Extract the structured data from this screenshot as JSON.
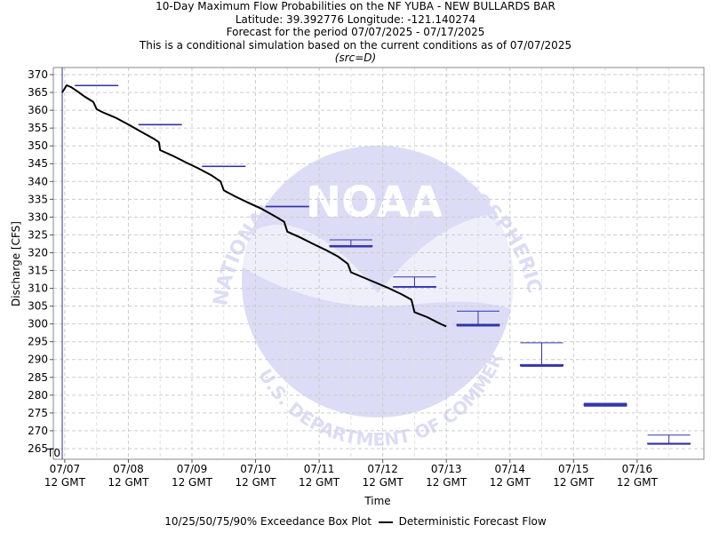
{
  "titles": {
    "line1": "10-Day Maximum Flow Probabilities on the NF YUBA - NEW BULLARDS BAR",
    "line2": "Latitude: 39.392776 Longitude: -121.140274",
    "line3": "Forecast for the period 07/07/2025 - 07/17/2025",
    "line4": "This is a conditional simulation based on the current conditions as of 07/07/2025",
    "line5": "(src=D)"
  },
  "watermark": {
    "ring_top": "NATIONAL OCEANIC AND ATMOSPHERIC ADMINISTRATION",
    "ring_bottom": "U.S. DEPARTMENT OF COMMERCE",
    "logo": "NOAA"
  },
  "legend": {
    "box_label": "10/25/50/75/90% Exceedance Box Plot",
    "line_label": "Deterministic Forecast Flow"
  },
  "colors": {
    "box": "#3333aa",
    "line": "#000000",
    "grid": "#cccccc",
    "t0": "#3333aa",
    "watermark": "#dcdcf6"
  },
  "chart_data": {
    "type": "line",
    "xlabel": "Time",
    "ylabel": "Discharge [CFS]",
    "ylim": [
      262,
      372
    ],
    "xlim_days": [
      -0.18,
      10.05
    ],
    "yticks": [
      265,
      270,
      275,
      280,
      285,
      290,
      295,
      300,
      305,
      310,
      315,
      320,
      325,
      330,
      335,
      340,
      345,
      350,
      355,
      360,
      365,
      370
    ],
    "xticks": [
      {
        "day": 0,
        "line1": "07/07",
        "line2": "12 GMT"
      },
      {
        "day": 1,
        "line1": "07/08",
        "line2": "12 GMT"
      },
      {
        "day": 2,
        "line1": "07/09",
        "line2": "12 GMT"
      },
      {
        "day": 3,
        "line1": "07/10",
        "line2": "12 GMT"
      },
      {
        "day": 4,
        "line1": "07/11",
        "line2": "12 GMT"
      },
      {
        "day": 5,
        "line1": "07/12",
        "line2": "12 GMT"
      },
      {
        "day": 6,
        "line1": "07/13",
        "line2": "12 GMT"
      },
      {
        "day": 7,
        "line1": "07/14",
        "line2": "12 GMT"
      },
      {
        "day": 8,
        "line1": "07/15",
        "line2": "12 GMT"
      },
      {
        "day": 9,
        "line1": "07/16",
        "line2": "12 GMT"
      }
    ],
    "grid": true,
    "t0": {
      "day": -0.04,
      "label": "T0"
    },
    "series": [
      {
        "name": "Deterministic Forecast Flow",
        "x": [
          -0.04,
          0.03,
          0.1,
          0.2,
          0.3,
          0.45,
          0.5,
          0.6,
          0.8,
          1.0,
          1.2,
          1.4,
          1.48,
          1.5,
          1.7,
          1.9,
          2.1,
          2.3,
          2.45,
          2.5,
          2.7,
          2.9,
          3.1,
          3.3,
          3.45,
          3.5,
          3.7,
          3.9,
          4.1,
          4.3,
          4.45,
          4.5,
          4.7,
          4.9,
          5.1,
          5.3,
          5.45,
          5.5,
          5.7,
          5.9,
          6.0
        ],
        "y": [
          365,
          367,
          366.5,
          365.3,
          364,
          362.3,
          360.3,
          359.4,
          357.9,
          356,
          354,
          352,
          351,
          348.8,
          347.2,
          345.4,
          343.7,
          341.8,
          340,
          337.5,
          335.6,
          333.9,
          332.3,
          330.3,
          328.7,
          325.9,
          324.3,
          322.5,
          320.8,
          318.9,
          316.9,
          314.5,
          313,
          311.5,
          310,
          308.3,
          306.8,
          303.3,
          301.9,
          300.1,
          299.3
        ]
      }
    ],
    "boxes": [
      {
        "day": 0.5,
        "p10": 367,
        "p25": 367,
        "p50": 367,
        "p75": 367,
        "p90": 367
      },
      {
        "day": 1.5,
        "p10": 356,
        "p25": 356,
        "p50": 356,
        "p75": 356,
        "p90": 356
      },
      {
        "day": 2.5,
        "p10": 344.3,
        "p25": 344.3,
        "p50": 344.3,
        "p75": 344.3,
        "p90": 344.3
      },
      {
        "day": 3.5,
        "p10": 333,
        "p25": 333,
        "p50": 333,
        "p75": 333,
        "p90": 333
      },
      {
        "day": 4.5,
        "p10": 321.6,
        "p25": 322,
        "p50": 322,
        "p75": 322,
        "p90": 323.6
      },
      {
        "day": 5.5,
        "p10": 310.3,
        "p25": 310.5,
        "p50": 310.5,
        "p75": 310.5,
        "p90": 313.2
      },
      {
        "day": 6.5,
        "p10": 299.4,
        "p25": 299.6,
        "p50": 299.7,
        "p75": 299.9,
        "p90": 303.6
      },
      {
        "day": 7.5,
        "p10": 288.1,
        "p25": 288.3,
        "p50": 288.4,
        "p75": 288.6,
        "p90": 294.7
      },
      {
        "day": 8.5,
        "p10": 276.9,
        "p25": 277.1,
        "p50": 277.3,
        "p75": 277.5,
        "p90": 277.7
      },
      {
        "day": 9.5,
        "p10": 266.2,
        "p25": 266.3,
        "p50": 266.4,
        "p75": 266.5,
        "p90": 268.8
      }
    ]
  }
}
